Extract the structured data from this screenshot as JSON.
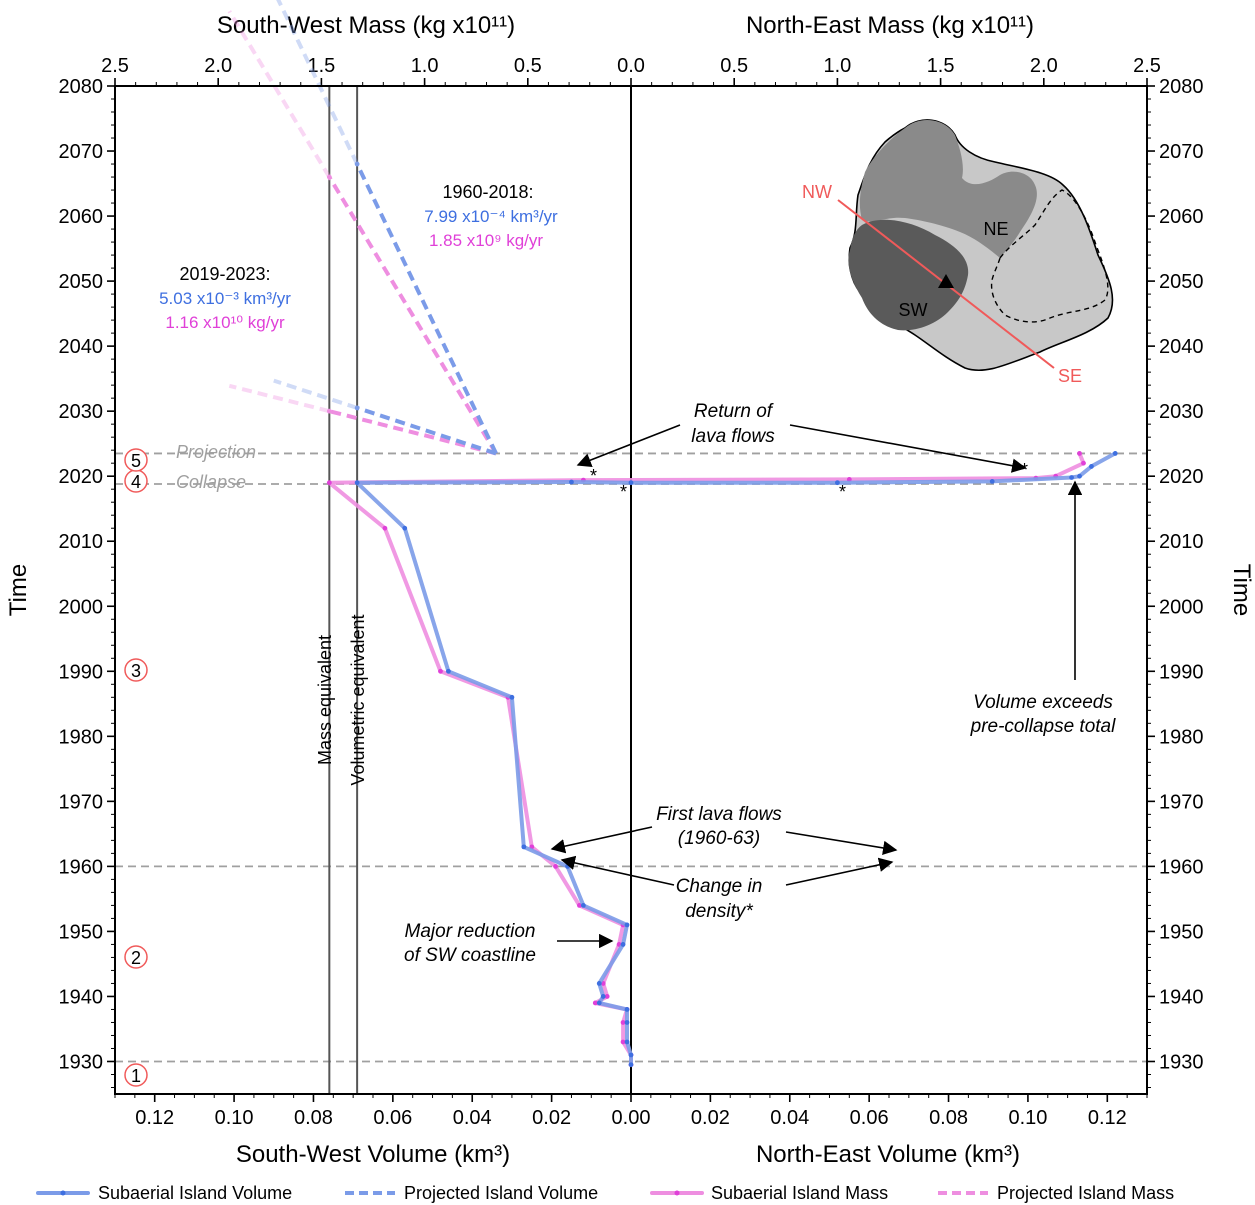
{
  "chart_data": {
    "type": "line",
    "axes": {
      "top_left_title": "South-West Mass (kg x10¹¹)",
      "top_right_title": "North-East Mass (kg x10¹¹)",
      "bottom_left_title": "South-West Volume (km³)",
      "bottom_right_title": "North-East Volume (km³)",
      "y_title_left": "Time",
      "y_title_right": "Time",
      "y_range": [
        1925,
        2080
      ],
      "y_ticks": [
        "1930",
        "1940",
        "1950",
        "1960",
        "1970",
        "1980",
        "1990",
        "2000",
        "2010",
        "2020",
        "2030",
        "2040",
        "2050",
        "2060",
        "2070",
        "2080"
      ],
      "mass_range": [
        -2.5,
        2.5
      ],
      "mass_ticks": [
        "2.5",
        "2.0",
        "1.5",
        "1.0",
        "0.5",
        "0.0",
        "0.5",
        "1.0",
        "1.5",
        "2.0",
        "2.5"
      ],
      "volume_range": [
        -0.13,
        0.13
      ],
      "volume_ticks": [
        "0.12",
        "0.10",
        "0.08",
        "0.06",
        "0.04",
        "0.02",
        "0.00",
        "0.02",
        "0.04",
        "0.06",
        "0.08",
        "0.10",
        "0.12"
      ]
    },
    "series": [
      {
        "name": "Subaerial Island Volume",
        "color": "#7b9be8",
        "style": "solid",
        "points": [
          [
            0.0,
            1929.5
          ],
          [
            0.0,
            1931
          ],
          [
            -0.001,
            1933
          ],
          [
            -0.001,
            1936
          ],
          [
            -0.001,
            1938
          ],
          [
            -0.008,
            1939
          ],
          [
            -0.007,
            1940
          ],
          [
            -0.008,
            1942
          ],
          [
            -0.002,
            1948
          ],
          [
            -0.001,
            1951
          ],
          [
            -0.012,
            1954
          ],
          [
            -0.016,
            1960
          ],
          [
            -0.027,
            1963
          ],
          [
            -0.03,
            1986
          ],
          [
            -0.046,
            1990
          ],
          [
            -0.057,
            2012
          ],
          [
            -0.069,
            2019
          ],
          [
            -0.015,
            2019.1
          ],
          [
            0.0,
            2019
          ],
          [
            0.052,
            2019
          ],
          [
            0.091,
            2019.2
          ],
          [
            0.111,
            2019.8
          ],
          [
            0.113,
            2020
          ],
          [
            0.116,
            2021.5
          ],
          [
            0.122,
            2023.5
          ]
        ]
      },
      {
        "name": "Subaerial Island Mass",
        "color": "#ee8ee0",
        "style": "solid",
        "points": [
          [
            0.0,
            1929.5
          ],
          [
            0.0,
            1931
          ],
          [
            -0.002,
            1933
          ],
          [
            -0.002,
            1936
          ],
          [
            -0.001,
            1938
          ],
          [
            -0.009,
            1939
          ],
          [
            -0.006,
            1940
          ],
          [
            -0.007,
            1942
          ],
          [
            -0.003,
            1948
          ],
          [
            -0.002,
            1951
          ],
          [
            -0.013,
            1954
          ],
          [
            -0.019,
            1960
          ],
          [
            -0.025,
            1963
          ],
          [
            -0.031,
            1986
          ],
          [
            -0.048,
            1990
          ],
          [
            -0.062,
            2012
          ],
          [
            -0.076,
            2019
          ],
          [
            -0.012,
            2019.4
          ],
          [
            0.055,
            2019.5
          ],
          [
            0.102,
            2019.7
          ],
          [
            0.107,
            2020
          ],
          [
            0.114,
            2022
          ],
          [
            0.113,
            2023.5
          ]
        ]
      },
      {
        "name": "Projected Island Volume",
        "color": "#7b9be8",
        "style": "dashed",
        "segments": [
          [
            "1960-2018",
            [
              [
                -0.034,
                2023.5
              ],
              [
                -0.069,
                2068
              ]
            ]
          ],
          [
            "2019-2023",
            [
              [
                -0.034,
                2023.5
              ],
              [
                -0.069,
                2030.5
              ]
            ]
          ]
        ]
      },
      {
        "name": "Projected Island Mass",
        "color": "#ee8ee0",
        "style": "dashed",
        "segments": [
          [
            "1960-2018",
            [
              [
                -0.034,
                2023.5
              ],
              [
                -0.076,
                2066
              ]
            ]
          ],
          [
            "2019-2023",
            [
              [
                -0.034,
                2023.5
              ],
              [
                -0.076,
                2030
              ]
            ]
          ]
        ]
      }
    ],
    "reference_lines": {
      "vertical": [
        {
          "label": "Mass equivalent",
          "x": -0.076
        },
        {
          "label": "Volumetric equivalent",
          "x": -0.069
        },
        {
          "label": "",
          "x": 0.0
        }
      ],
      "horizontal": [
        {
          "label": "Projection",
          "y": 2023.5
        },
        {
          "label": "Collapse",
          "y": 2018.8
        },
        {
          "label": "",
          "y": 1960
        },
        {
          "label": "",
          "y": 1930
        }
      ]
    },
    "rates": [
      {
        "period": "1960-2018:",
        "volume_rate": "7.99 x10⁻⁴ km³/yr",
        "mass_rate": "1.85 x10⁹ kg/yr"
      },
      {
        "period": "2019-2023:",
        "volume_rate": "5.03 x10⁻³ km³/yr",
        "mass_rate": "1.16 x10¹⁰ kg/yr"
      }
    ],
    "annotations": [
      {
        "text": [
          "Return of",
          "lava flows"
        ]
      },
      {
        "text": [
          "Volume exceeds",
          "pre-collapse total"
        ]
      },
      {
        "text": [
          "First lava flows",
          "(1960-63)"
        ]
      },
      {
        "text": [
          "Change in",
          "density*"
        ]
      },
      {
        "text": [
          "Major reduction",
          "of SW coastline"
        ]
      }
    ],
    "asterisks": [
      "*",
      "*",
      "*",
      "*"
    ],
    "phases": [
      "1",
      "2",
      "3",
      "4",
      "5"
    ],
    "inset_map": {
      "labels": {
        "ne": "NE",
        "sw": "SW",
        "nw": "NW",
        "se": "SE"
      }
    },
    "legend": [
      {
        "label": "Subaerial Island Volume",
        "color": "#7b9be8",
        "style": "solid"
      },
      {
        "label": "Projected Island Volume",
        "color": "#7b9be8",
        "style": "dashed"
      },
      {
        "label": "Subaerial Island Mass",
        "color": "#ee8ee0",
        "style": "solid"
      },
      {
        "label": "Projected Island Mass",
        "color": "#ee8ee0",
        "style": "dashed"
      }
    ]
  }
}
